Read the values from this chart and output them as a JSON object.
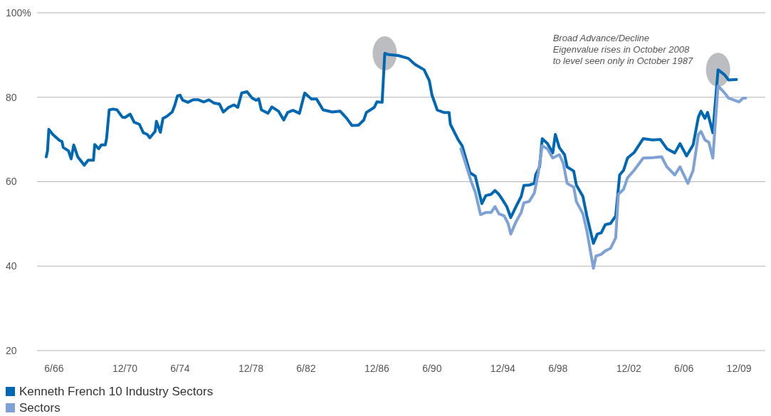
{
  "chart_data": {
    "type": "line",
    "xlim": [
      "1965-05",
      "2011-08"
    ],
    "xticks": [
      {
        "value": "1966-06",
        "label": "6/66"
      },
      {
        "value": "1970-12",
        "label": "12/70"
      },
      {
        "value": "1974-06",
        "label": "6/74"
      },
      {
        "value": "1978-12",
        "label": "12/78"
      },
      {
        "value": "1982-06",
        "label": "6/82"
      },
      {
        "value": "1986-12",
        "label": "12/86"
      },
      {
        "value": "1990-06",
        "label": "6/90"
      },
      {
        "value": "1994-12",
        "label": "12/94"
      },
      {
        "value": "1998-06",
        "label": "6/98"
      },
      {
        "value": "2002-12",
        "label": "12/02"
      },
      {
        "value": "2006-06",
        "label": "6/06"
      },
      {
        "value": "2009-12",
        "label": "12/09"
      }
    ],
    "ylim": [
      20,
      100
    ],
    "yticks": [
      20,
      40,
      60,
      80,
      {
        "value": 100,
        "label": "100%"
      }
    ],
    "grid": "y",
    "legend": "bottom left",
    "marker": "none",
    "line_style": "solid",
    "annotations": [
      "Broad Advance/Decline\nEigenvalue rises in October 2008\nto level seen only in October 1987"
    ],
    "series": [
      {
        "name": "Kenneth French 10 Industry Sectors",
        "color": "#0068b3",
        "x": [
          "1965-12",
          "1966-01",
          "1966-02",
          "1966-05",
          "1966-10",
          "1966-12",
          "1967-01",
          "1967-05",
          "1967-07",
          "1967-09",
          "1967-12",
          "1968-05",
          "1968-08",
          "1968-12",
          "1969-01",
          "1969-04",
          "1969-06",
          "1969-09",
          "1969-10",
          "1969-12",
          "1970-03",
          "1970-06",
          "1970-10",
          "1970-12",
          "1971-04",
          "1971-07",
          "1971-11",
          "1972-02",
          "1972-05",
          "1972-07",
          "1972-11",
          "1972-12",
          "1973-03",
          "1973-05",
          "1973-08",
          "1973-12",
          "1974-02",
          "1974-04",
          "1974-06",
          "1974-08",
          "1974-12",
          "1975-04",
          "1975-08",
          "1975-12",
          "1976-04",
          "1976-08",
          "1976-12",
          "1977-03",
          "1977-07",
          "1977-11",
          "1978-02",
          "1978-05",
          "1978-09",
          "1979-01",
          "1979-04",
          "1979-06",
          "1979-08",
          "1980-01",
          "1980-04",
          "1980-09",
          "1981-01",
          "1981-04",
          "1981-08",
          "1982-01",
          "1982-05",
          "1982-10",
          "1983-02",
          "1983-07",
          "1984-02",
          "1984-08",
          "1985-01",
          "1985-05",
          "1985-10",
          "1986-02",
          "1986-04",
          "1986-10",
          "1986-12",
          "1987-04",
          "1987-06",
          "1987-09",
          "1988-04",
          "1988-12",
          "1989-05",
          "1989-12",
          "1990-04",
          "1990-06",
          "1990-10",
          "1991-03",
          "1991-07",
          "1991-08",
          "1992-02",
          "1992-05",
          "1992-11",
          "1993-03",
          "1993-08",
          "1993-11",
          "1994-03",
          "1994-06",
          "1994-09",
          "1994-12",
          "1995-03",
          "1995-06",
          "1995-10",
          "1996-02",
          "1996-04",
          "1996-08",
          "1996-12",
          "1997-01",
          "1997-04",
          "1997-06",
          "1997-10",
          "1998-02",
          "1998-04",
          "1998-07",
          "1998-11",
          "1999-01",
          "1999-06",
          "1999-08",
          "2000-01",
          "2000-04",
          "2000-09",
          "2000-12",
          "2001-03",
          "2001-06",
          "2001-10",
          "2002-02",
          "2002-05",
          "2002-08",
          "2002-11",
          "2003-04",
          "2003-11",
          "2004-06",
          "2004-12",
          "2005-05",
          "2005-11",
          "2006-03",
          "2006-08",
          "2007-01",
          "2007-05",
          "2007-07",
          "2007-10",
          "2007-12",
          "2008-04",
          "2008-08",
          "2009-01",
          "2009-04",
          "2009-10"
        ],
        "values": [
          65.9,
          67.3,
          72.4,
          71.2,
          69.8,
          69.5,
          68.1,
          67.3,
          65.4,
          68.7,
          65.9,
          63.9,
          65.1,
          65.1,
          68.8,
          67.8,
          68.7,
          68.7,
          70.2,
          77.0,
          77.2,
          77.0,
          75.3,
          75.2,
          76.0,
          74.1,
          73.6,
          71.6,
          71.2,
          70.4,
          71.9,
          74.3,
          71.7,
          75.0,
          75.5,
          76.5,
          78.1,
          80.3,
          80.5,
          79.3,
          78.8,
          79.4,
          79.4,
          78.9,
          79.4,
          78.6,
          78.4,
          76.5,
          77.6,
          78.2,
          77.6,
          81.0,
          81.3,
          79.8,
          79.3,
          79.6,
          77.0,
          76.2,
          77.7,
          76.7,
          74.6,
          76.4,
          76.9,
          76.2,
          81.0,
          79.6,
          79.6,
          77.0,
          76.5,
          76.7,
          75.0,
          73.3,
          73.4,
          74.6,
          76.4,
          77.6,
          78.9,
          78.8,
          90.4,
          90.1,
          89.9,
          89.2,
          87.8,
          86.5,
          83.9,
          80.5,
          77.0,
          76.4,
          76.4,
          73.6,
          69.9,
          68.5,
          62.1,
          61.3,
          54.8,
          56.7,
          57.0,
          57.9,
          57.0,
          55.6,
          54.1,
          51.5,
          54.1,
          56.5,
          59.1,
          59.2,
          59.6,
          61.6,
          63.5,
          70.2,
          69.0,
          66.8,
          71.2,
          68.1,
          66.4,
          63.5,
          62.5,
          59.2,
          56.5,
          51.9,
          45.4,
          47.6,
          47.9,
          49.8,
          50.1,
          51.9,
          61.6,
          62.7,
          65.6,
          66.9,
          70.2,
          69.9,
          70.0,
          67.8,
          66.8,
          69.0,
          66.1,
          68.7,
          75.3,
          76.7,
          75.0,
          76.4,
          71.6,
          86.5,
          85.3,
          84.1,
          84.2
        ]
      },
      {
        "name": "Sectors",
        "color": "#7ea2d5",
        "x": [
          "1992-04",
          "1992-08",
          "1992-12",
          "1993-03",
          "1993-07",
          "1993-11",
          "1994-03",
          "1994-06",
          "1994-09",
          "1995-01",
          "1995-04",
          "1995-06",
          "1995-10",
          "1996-02",
          "1996-04",
          "1996-08",
          "1996-12",
          "1997-03",
          "1997-06",
          "1997-10",
          "1998-02",
          "1998-07",
          "1998-10",
          "1999-01",
          "1999-06",
          "1999-08",
          "2000-01",
          "2000-04",
          "2000-09",
          "2000-11",
          "2001-03",
          "2001-06",
          "2001-10",
          "2002-02",
          "2002-04",
          "2002-08",
          "2002-11",
          "2003-04",
          "2003-11",
          "2004-06",
          "2005-01",
          "2005-05",
          "2005-11",
          "2006-03",
          "2006-09",
          "2007-01",
          "2007-05",
          "2007-07",
          "2007-10",
          "2008-01",
          "2008-04",
          "2008-08",
          "2009-01",
          "2009-04",
          "2009-12",
          "2010-03",
          "2010-05"
        ],
        "values": [
          67.8,
          63.9,
          59.9,
          57.5,
          52.2,
          52.7,
          52.7,
          54.1,
          52.4,
          51.9,
          50.1,
          47.6,
          50.5,
          52.7,
          55.0,
          55.3,
          57.3,
          62.1,
          68.5,
          67.8,
          65.6,
          66.4,
          64.4,
          59.6,
          58.7,
          55.3,
          52.4,
          48.4,
          39.5,
          42.4,
          42.8,
          43.6,
          44.2,
          46.7,
          57.0,
          58.2,
          60.9,
          62.7,
          65.6,
          65.7,
          65.9,
          63.5,
          61.6,
          63.5,
          59.6,
          62.7,
          71.2,
          71.9,
          69.9,
          69.3,
          65.6,
          82.7,
          81.0,
          79.8,
          78.9,
          79.8,
          79.8
        ]
      }
    ]
  }
}
